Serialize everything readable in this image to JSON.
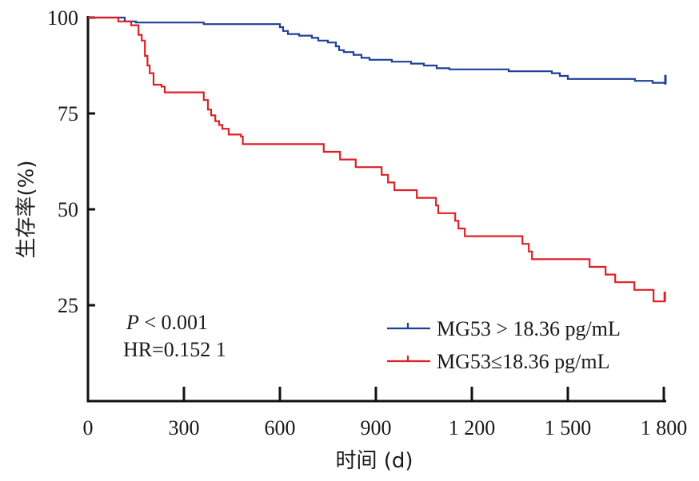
{
  "chart_data": {
    "type": "line",
    "subtype": "kaplan-meier step",
    "xlabel": "时间 (d)",
    "ylabel": "生存率(%)",
    "xlim": [
      0,
      1800
    ],
    "ylim": [
      0,
      100
    ],
    "x_ticks": [
      {
        "value": 0,
        "label": "0"
      },
      {
        "value": 300,
        "label": "300"
      },
      {
        "value": 600,
        "label": "600"
      },
      {
        "value": 900,
        "label": "900"
      },
      {
        "value": 1200,
        "label": "1 200"
      },
      {
        "value": 1500,
        "label": "1 500"
      },
      {
        "value": 1800,
        "label": "1 800"
      }
    ],
    "y_ticks": [
      {
        "value": 100,
        "label": "100"
      },
      {
        "value": 75,
        "label": "75"
      },
      {
        "value": 50,
        "label": "50"
      },
      {
        "value": 25,
        "label": "25"
      }
    ],
    "grid": false,
    "legend_position": "bottom-right",
    "annotations": {
      "p_symbol": "P",
      "p_rest": " < 0.001",
      "hr": "HR=0.152 1"
    },
    "series": [
      {
        "name": "MG53 > 18.36 pg/mL",
        "color": "#1f3f99",
        "points": [
          [
            0,
            100
          ],
          [
            100,
            100
          ],
          [
            115,
            99
          ],
          [
            150,
            98.7
          ],
          [
            360,
            98.7
          ],
          [
            362,
            98.3
          ],
          [
            590,
            98.3
          ],
          [
            600,
            97.5
          ],
          [
            610,
            96.5
          ],
          [
            625,
            95.7
          ],
          [
            660,
            95.3
          ],
          [
            700,
            94.7
          ],
          [
            720,
            94
          ],
          [
            750,
            93.5
          ],
          [
            775,
            92.5
          ],
          [
            785,
            91.5
          ],
          [
            800,
            91
          ],
          [
            830,
            90.3
          ],
          [
            855,
            89.5
          ],
          [
            880,
            89
          ],
          [
            950,
            88.5
          ],
          [
            1010,
            88
          ],
          [
            1050,
            87.5
          ],
          [
            1090,
            86.8
          ],
          [
            1130,
            86.5
          ],
          [
            1300,
            86.5
          ],
          [
            1315,
            86
          ],
          [
            1420,
            86
          ],
          [
            1450,
            85.5
          ],
          [
            1475,
            84.8
          ],
          [
            1500,
            84
          ],
          [
            1700,
            84
          ],
          [
            1710,
            83.5
          ],
          [
            1760,
            83.5
          ],
          [
            1765,
            83
          ],
          [
            1800,
            83
          ],
          [
            1805,
            84
          ]
        ]
      },
      {
        "name": "MG53≤18.36 pg/mL",
        "color": "#e01f25",
        "points": [
          [
            0,
            100
          ],
          [
            80,
            100
          ],
          [
            95,
            99
          ],
          [
            120,
            99
          ],
          [
            135,
            98
          ],
          [
            150,
            98
          ],
          [
            158,
            95.5
          ],
          [
            168,
            94
          ],
          [
            178,
            90
          ],
          [
            186,
            87.5
          ],
          [
            193,
            85.5
          ],
          [
            205,
            82.5
          ],
          [
            230,
            82
          ],
          [
            240,
            80.5
          ],
          [
            350,
            80.5
          ],
          [
            362,
            78.5
          ],
          [
            375,
            76
          ],
          [
            385,
            74.5
          ],
          [
            398,
            73
          ],
          [
            410,
            72
          ],
          [
            420,
            71
          ],
          [
            440,
            69.5
          ],
          [
            478,
            69
          ],
          [
            484,
            67
          ],
          [
            727,
            67
          ],
          [
            737,
            65
          ],
          [
            778,
            65
          ],
          [
            788,
            63
          ],
          [
            827,
            63
          ],
          [
            837,
            61
          ],
          [
            908,
            61
          ],
          [
            918,
            59
          ],
          [
            938,
            57
          ],
          [
            958,
            55
          ],
          [
            1018,
            55
          ],
          [
            1028,
            53
          ],
          [
            1078,
            53
          ],
          [
            1088,
            51
          ],
          [
            1095,
            49
          ],
          [
            1138,
            49
          ],
          [
            1148,
            47
          ],
          [
            1158,
            45
          ],
          [
            1178,
            43
          ],
          [
            1348,
            43
          ],
          [
            1358,
            41
          ],
          [
            1378,
            39
          ],
          [
            1388,
            37
          ],
          [
            1558,
            37
          ],
          [
            1568,
            35
          ],
          [
            1608,
            35
          ],
          [
            1618,
            33
          ],
          [
            1648,
            31
          ],
          [
            1698,
            31
          ],
          [
            1708,
            29
          ],
          [
            1758,
            29
          ],
          [
            1768,
            26
          ],
          [
            1798,
            26
          ],
          [
            1803,
            27.5
          ]
        ]
      }
    ]
  }
}
